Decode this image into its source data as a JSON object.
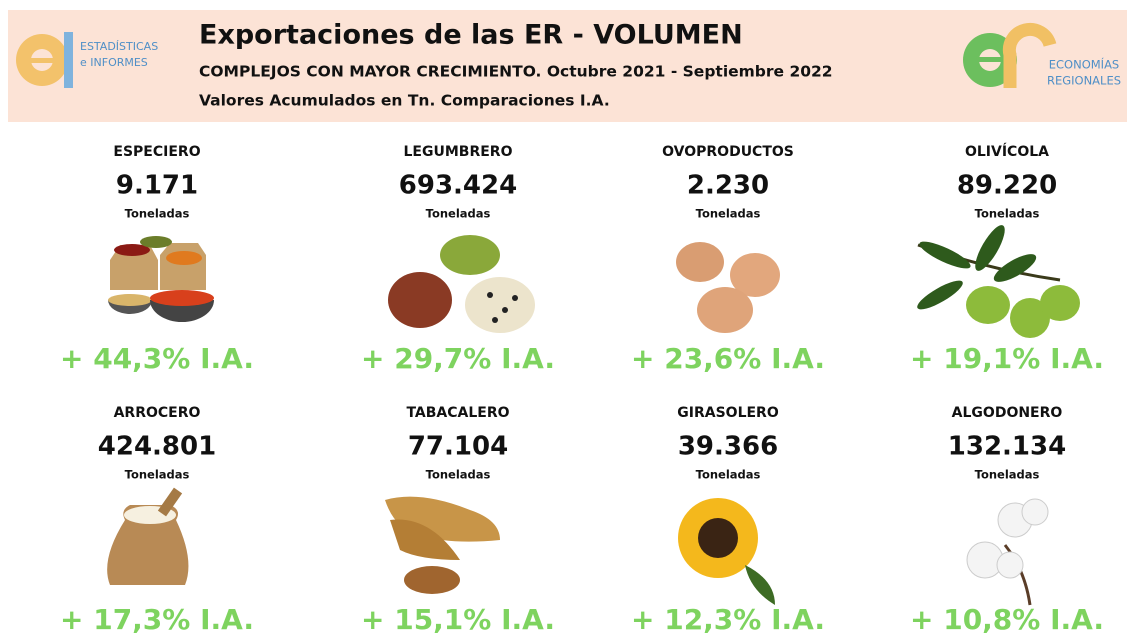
{
  "header": {
    "title": "Exportaciones de las ER - VOLUMEN",
    "subtitle": "COMPLEJOS CON MAYOR CRECIMIENTO. Octubre 2021 - Septiembre 2022",
    "note": "Valores Acumulados en Tn. Comparaciones I.A.",
    "left_logo": [
      "ESTADÍSTICAS",
      "e INFORMES"
    ],
    "right_logo": [
      "ECONOMÍAS",
      "REGIONALES"
    ]
  },
  "items": [
    {
      "name": "ESPECIERO",
      "volume": "9.171",
      "unit": "Toneladas",
      "growth": "+ 44,3% I.A."
    },
    {
      "name": "LEGUMBRERO",
      "volume": "693.424",
      "unit": "Toneladas",
      "growth": "+ 29,7% I.A."
    },
    {
      "name": "OVOPRODUCTOS",
      "volume": "2.230",
      "unit": "Toneladas",
      "growth": "+ 23,6% I.A."
    },
    {
      "name": "OLIVÍCOLA",
      "volume": "89.220",
      "unit": "Toneladas",
      "growth": "+ 19,1% I.A."
    },
    {
      "name": "ARROCERO",
      "volume": "424.801",
      "unit": "Toneladas",
      "growth": "+ 17,3% I.A."
    },
    {
      "name": "TABACALERO",
      "volume": "77.104",
      "unit": "Toneladas",
      "growth": "+ 15,1% I.A."
    },
    {
      "name": "GIRASOLERO",
      "volume": "39.366",
      "unit": "Toneladas",
      "growth": "+ 12,3% I.A."
    },
    {
      "name": "ALGODONERO",
      "volume": "132.134",
      "unit": "Toneladas",
      "growth": "+ 10,8% I.A."
    }
  ]
}
